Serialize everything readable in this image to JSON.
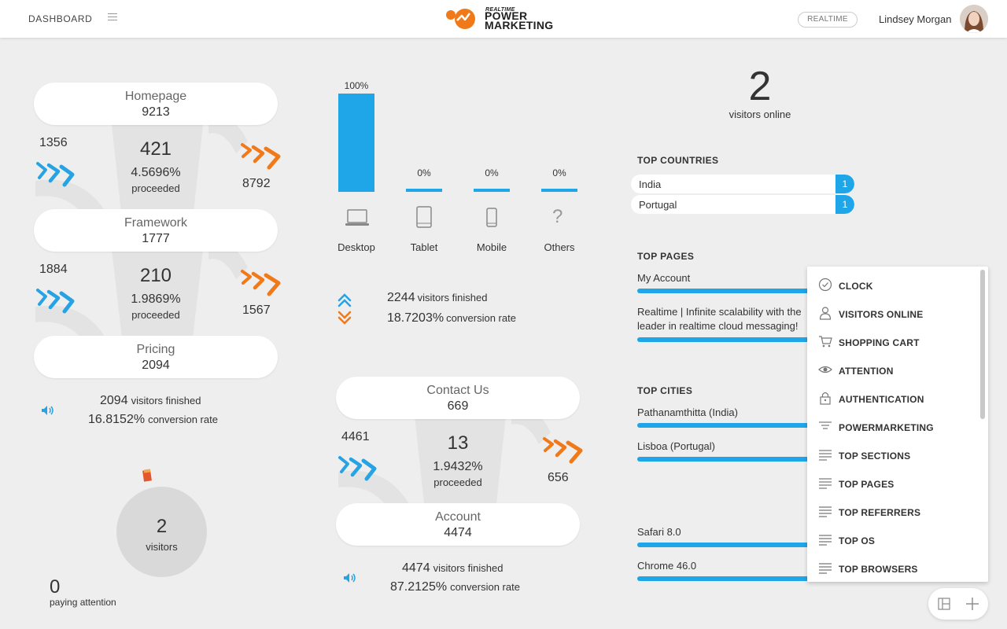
{
  "header": {
    "dashboard_label": "DASHBOARD",
    "logo_small": "REALTIME",
    "logo_line1": "POWER",
    "logo_line2": "MARKETING",
    "realtime_badge": "REALTIME",
    "user_name": "Lindsey Morgan"
  },
  "funnel_left": {
    "steps": [
      {
        "name": "Homepage",
        "count": "9213"
      },
      {
        "name": "Framework",
        "count": "1777"
      },
      {
        "name": "Pricing",
        "count": "2094"
      }
    ],
    "transitions": [
      {
        "in": "1356",
        "middle": "421",
        "percent": "4.5696%",
        "label": "proceeded",
        "out": "8792"
      },
      {
        "in": "1884",
        "middle": "210",
        "percent": "1.9869%",
        "label": "proceeded",
        "out": "1567"
      }
    ],
    "finished_num": "2094",
    "finished_label": "visitors finished",
    "conversion_num": "16.8152%",
    "conversion_label": "conversion rate"
  },
  "devices": {
    "items": [
      {
        "label": "Desktop",
        "percent": "100%",
        "value": 1.0
      },
      {
        "label": "Tablet",
        "percent": "0%",
        "value": 0
      },
      {
        "label": "Mobile",
        "percent": "0%",
        "value": 0
      },
      {
        "label": "Others",
        "percent": "0%",
        "value": 0
      }
    ],
    "others_glyph": "?",
    "finished_num": "2244",
    "finished_label": "visitors finished",
    "conversion_num": "18.7203%",
    "conversion_label": "conversion rate"
  },
  "funnel_mid": {
    "steps": [
      {
        "name": "Contact Us",
        "count": "669"
      },
      {
        "name": "Account",
        "count": "4474"
      }
    ],
    "transition": {
      "in": "4461",
      "middle": "13",
      "percent": "1.9432%",
      "label": "proceeded",
      "out": "656"
    },
    "finished_num": "4474",
    "finished_label": "visitors finished",
    "conversion_num": "87.2125%",
    "conversion_label": "conversion rate"
  },
  "visitors_bubble": {
    "count": "2",
    "label": "visitors"
  },
  "paying_attention": {
    "count": "0",
    "label": "paying attention"
  },
  "online": {
    "count": "2",
    "label": "visitors online"
  },
  "top_countries": {
    "title": "TOP COUNTRIES",
    "items": [
      {
        "name": "India",
        "count": "1"
      },
      {
        "name": "Portugal",
        "count": "1"
      }
    ]
  },
  "top_pages": {
    "title": "TOP PAGES",
    "items": [
      {
        "line1": "My Account",
        "line2": ""
      },
      {
        "line1": "Realtime | Infinite scalability with the",
        "line2": "leader in realtime cloud messaging!"
      }
    ]
  },
  "top_cities": {
    "title": "TOP CITIES",
    "items": [
      {
        "name": "Pathanamthitta (India)"
      },
      {
        "name": "Lisboa (Portugal)"
      }
    ]
  },
  "top_browsers": {
    "items": [
      {
        "name": "Safari 8.0"
      },
      {
        "name": "Chrome 46.0"
      }
    ]
  },
  "dropdown": {
    "items": [
      {
        "label": "CLOCK",
        "icon": "clock-icon"
      },
      {
        "label": "VISITORS ONLINE",
        "icon": "person-icon"
      },
      {
        "label": "SHOPPING CART",
        "icon": "cart-icon"
      },
      {
        "label": "ATTENTION",
        "icon": "eye-icon"
      },
      {
        "label": "AUTHENTICATION",
        "icon": "lock-icon"
      },
      {
        "label": "POWERMARKETING",
        "icon": "filter-icon"
      },
      {
        "label": "TOP SECTIONS",
        "icon": "list-icon"
      },
      {
        "label": "TOP PAGES",
        "icon": "list-icon"
      },
      {
        "label": "TOP REFERRERS",
        "icon": "list-icon"
      },
      {
        "label": "TOP OS",
        "icon": "list-icon"
      },
      {
        "label": "TOP BROWSERS",
        "icon": "list-icon"
      }
    ]
  },
  "colors": {
    "accent_blue": "#1fa6e8",
    "accent_orange": "#f07a1a",
    "background": "#eeeeee"
  }
}
